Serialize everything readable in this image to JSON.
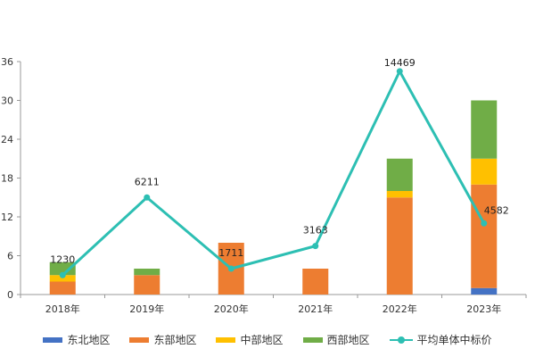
{
  "chart_data": {
    "type": "bar",
    "stacked": true,
    "categories": [
      "2018年",
      "2019年",
      "2020年",
      "2021年",
      "2022年",
      "2023年"
    ],
    "ylim": [
      0,
      36
    ],
    "yticks": [
      0,
      6,
      12,
      18,
      24,
      30,
      36
    ],
    "grid": false,
    "legend_position": "bottom",
    "series": [
      {
        "name": "东北地区",
        "type": "bar",
        "color": "#4472c4",
        "values": [
          0,
          0,
          0,
          0,
          0,
          1
        ]
      },
      {
        "name": "东部地区",
        "type": "bar",
        "color": "#ed7d31",
        "values": [
          2,
          3,
          8,
          4,
          15,
          16
        ]
      },
      {
        "name": "中部地区",
        "type": "bar",
        "color": "#ffc000",
        "values": [
          1,
          0,
          0,
          0,
          1,
          4
        ]
      },
      {
        "name": "西部地区",
        "type": "bar",
        "color": "#70ad47",
        "values": [
          2,
          1,
          0,
          0,
          5,
          9
        ]
      },
      {
        "name": "平均单体中标价",
        "type": "line",
        "color": "#2dbfb3",
        "values": [
          3,
          15,
          4,
          7.5,
          34.5,
          11
        ],
        "labels": [
          "1230",
          "6211",
          "1711",
          "3163",
          "14469",
          "4582"
        ]
      }
    ]
  }
}
